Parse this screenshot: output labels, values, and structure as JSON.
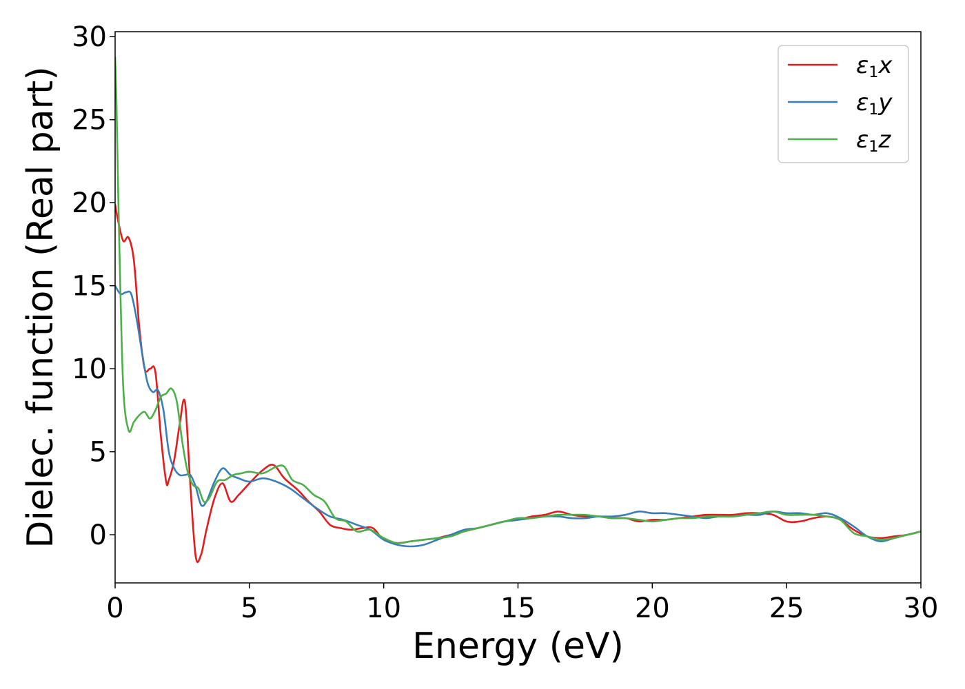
{
  "chart_data": {
    "type": "line",
    "xlabel": "Energy (eV)",
    "ylabel": "Dielec. function (Real part)",
    "xlim": [
      0,
      30
    ],
    "ylim": [
      -2.9,
      30.3
    ],
    "xticks": [
      0,
      5,
      10,
      15,
      20,
      25,
      30
    ],
    "yticks": [
      0,
      5,
      10,
      15,
      20,
      25,
      30
    ],
    "grid": false,
    "legend_position": "top-right",
    "series": [
      {
        "name": "ε1x",
        "label_base": "ε",
        "label_sub": "1",
        "label_var": "x",
        "color": "#e41a1c",
        "x": [
          0,
          0.1,
          0.3,
          0.5,
          0.7,
          0.9,
          1.1,
          1.3,
          1.5,
          1.7,
          1.9,
          2.0,
          2.2,
          2.4,
          2.6,
          2.8,
          3.0,
          3.2,
          3.4,
          3.7,
          4.0,
          4.3,
          4.6,
          5.0,
          5.5,
          5.9,
          6.3,
          6.8,
          7.2,
          7.6,
          8.0,
          8.4,
          8.8,
          9.2,
          9.6,
          10.0,
          10.5,
          11.0,
          11.5,
          12.0,
          12.5,
          13.0,
          13.5,
          14.0,
          14.5,
          15.0,
          15.5,
          16.0,
          16.5,
          17.0,
          17.5,
          18.0,
          18.5,
          19.0,
          19.5,
          20.0,
          20.5,
          21.0,
          21.5,
          22.0,
          22.5,
          23.0,
          23.5,
          24.0,
          24.5,
          25.0,
          25.5,
          26.0,
          26.5,
          27.0,
          27.5,
          28.0,
          28.5,
          29.0,
          29.5,
          30.0
        ],
        "values": [
          19.9,
          19.0,
          17.7,
          17.9,
          16.5,
          12.5,
          10.0,
          10.0,
          9.8,
          6.0,
          3.2,
          3.3,
          4.5,
          6.6,
          8.0,
          3.0,
          -1.3,
          -1.2,
          0.3,
          2.2,
          3.1,
          2.0,
          2.4,
          3.1,
          3.9,
          4.2,
          3.4,
          2.7,
          2.0,
          1.4,
          0.6,
          0.4,
          0.3,
          0.4,
          0.4,
          -0.3,
          -0.5,
          -0.4,
          -0.3,
          -0.2,
          0.0,
          0.2,
          0.4,
          0.6,
          0.8,
          0.9,
          1.1,
          1.2,
          1.4,
          1.2,
          1.1,
          1.1,
          1.0,
          1.0,
          0.8,
          0.9,
          0.9,
          1.0,
          1.1,
          1.2,
          1.2,
          1.2,
          1.3,
          1.3,
          1.2,
          0.8,
          0.8,
          1.0,
          1.1,
          0.9,
          0.3,
          -0.1,
          -0.2,
          -0.1,
          0.0,
          0.2
        ]
      },
      {
        "name": "ε1y",
        "label_base": "ε",
        "label_sub": "1",
        "label_var": "y",
        "color": "#377eb8",
        "x": [
          0,
          0.2,
          0.4,
          0.6,
          0.8,
          1.0,
          1.2,
          1.4,
          1.6,
          1.8,
          2.0,
          2.2,
          2.4,
          2.6,
          2.8,
          3.0,
          3.2,
          3.4,
          3.7,
          4.0,
          4.3,
          4.6,
          5.0,
          5.5,
          6.0,
          6.5,
          7.0,
          7.5,
          8.0,
          8.5,
          9.0,
          9.5,
          10.0,
          10.5,
          11.0,
          11.5,
          12.0,
          12.5,
          13.0,
          13.5,
          14.0,
          14.5,
          15.0,
          15.5,
          16.0,
          16.5,
          17.0,
          17.5,
          18.0,
          18.5,
          19.0,
          19.5,
          20.0,
          20.5,
          21.0,
          21.5,
          22.0,
          22.5,
          23.0,
          23.5,
          24.0,
          24.5,
          25.0,
          25.5,
          26.0,
          26.5,
          27.0,
          27.5,
          28.0,
          28.5,
          29.0,
          29.5,
          30.0
        ],
        "values": [
          15.0,
          14.5,
          14.6,
          14.5,
          13.0,
          11.0,
          9.2,
          8.6,
          8.7,
          7.5,
          5.0,
          4.0,
          3.6,
          3.6,
          3.6,
          2.9,
          1.8,
          2.0,
          3.2,
          4.0,
          3.6,
          3.4,
          3.2,
          3.4,
          3.2,
          2.8,
          2.2,
          1.6,
          1.1,
          0.9,
          0.6,
          0.3,
          -0.3,
          -0.6,
          -0.7,
          -0.6,
          -0.3,
          0.0,
          0.3,
          0.4,
          0.6,
          0.8,
          0.9,
          1.0,
          1.1,
          1.1,
          1.0,
          1.0,
          1.1,
          1.1,
          1.2,
          1.4,
          1.3,
          1.3,
          1.2,
          1.1,
          1.0,
          1.1,
          1.1,
          1.2,
          1.2,
          1.4,
          1.3,
          1.3,
          1.2,
          1.3,
          1.0,
          0.5,
          -0.1,
          -0.4,
          -0.2,
          0.0,
          0.2
        ]
      },
      {
        "name": "ε1z",
        "label_base": "ε",
        "label_sub": "1",
        "label_var": "z",
        "color": "#4daf4a",
        "x": [
          0,
          0.05,
          0.15,
          0.3,
          0.5,
          0.7,
          0.9,
          1.1,
          1.3,
          1.5,
          1.7,
          1.9,
          2.1,
          2.3,
          2.5,
          2.7,
          2.9,
          3.1,
          3.3,
          3.5,
          3.8,
          4.1,
          4.4,
          4.7,
          5.0,
          5.5,
          6.0,
          6.3,
          6.6,
          7.0,
          7.4,
          7.8,
          8.2,
          8.6,
          9.0,
          9.5,
          10.0,
          10.5,
          11.0,
          11.5,
          12.0,
          12.5,
          13.0,
          13.5,
          14.0,
          14.5,
          15.0,
          15.5,
          16.0,
          16.5,
          17.0,
          17.5,
          18.0,
          18.5,
          19.0,
          19.5,
          20.0,
          20.5,
          21.0,
          21.5,
          22.0,
          22.5,
          23.0,
          23.5,
          24.0,
          24.5,
          25.0,
          25.5,
          26.0,
          26.5,
          27.0,
          27.5,
          28.0,
          28.5,
          29.0,
          29.5,
          30.0
        ],
        "values": [
          28.8,
          26.0,
          18.0,
          9.0,
          6.3,
          6.8,
          7.2,
          7.4,
          7.0,
          7.5,
          8.3,
          8.5,
          8.8,
          8.0,
          5.6,
          3.8,
          3.0,
          2.8,
          2.0,
          2.2,
          3.2,
          3.3,
          3.6,
          3.7,
          3.8,
          3.7,
          4.1,
          4.1,
          3.3,
          3.0,
          2.4,
          2.0,
          1.0,
          0.8,
          0.2,
          0.3,
          -0.2,
          -0.5,
          -0.4,
          -0.3,
          -0.2,
          -0.1,
          0.2,
          0.4,
          0.6,
          0.8,
          1.0,
          1.0,
          1.1,
          1.2,
          1.2,
          1.2,
          1.1,
          1.0,
          1.0,
          0.9,
          0.8,
          0.9,
          1.0,
          1.0,
          1.1,
          1.1,
          1.1,
          1.2,
          1.3,
          1.4,
          1.2,
          1.2,
          1.2,
          1.1,
          0.9,
          0.1,
          -0.1,
          -0.3,
          -0.2,
          0.0,
          0.2
        ]
      }
    ]
  }
}
